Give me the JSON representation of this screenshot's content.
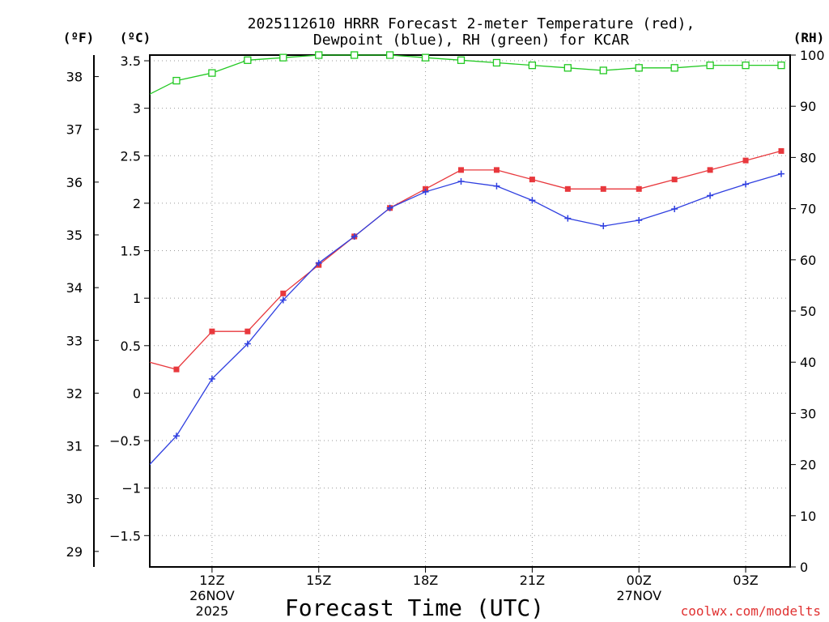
{
  "chart_data": {
    "type": "line",
    "title_line1": "2025112610 HRRR Forecast 2-meter Temperature (red),",
    "title_line2": "Dewpoint (blue), RH (green) for KCAR",
    "units": {
      "fahrenheit": "(ºF)",
      "celsius": "(ºC)",
      "rh": "(RH)"
    },
    "xlabel": "Forecast Time (UTC)",
    "credit": "coolwx.com/modelts",
    "x_range_hours": [
      10.25,
      28.25
    ],
    "celsius_range": [
      -1.83,
      3.56
    ],
    "rh_range": [
      0,
      100
    ],
    "x_ticks": [
      {
        "hour": 12,
        "label": "12Z",
        "sub1": "26NOV",
        "sub2": "2025"
      },
      {
        "hour": 15,
        "label": "15Z",
        "sub1": "",
        "sub2": ""
      },
      {
        "hour": 18,
        "label": "18Z",
        "sub1": "",
        "sub2": ""
      },
      {
        "hour": 21,
        "label": "21Z",
        "sub1": "",
        "sub2": ""
      },
      {
        "hour": 24,
        "label": "00Z",
        "sub1": "27NOV",
        "sub2": ""
      },
      {
        "hour": 27,
        "label": "03Z",
        "sub1": "",
        "sub2": ""
      }
    ],
    "celsius_ticks": [
      {
        "value": 3.5,
        "label": "3.5"
      },
      {
        "value": 3,
        "label": "3"
      },
      {
        "value": 2.5,
        "label": "2.5"
      },
      {
        "value": 2,
        "label": "2"
      },
      {
        "value": 1.5,
        "label": "1.5"
      },
      {
        "value": 1,
        "label": "1"
      },
      {
        "value": 0.5,
        "label": "0.5"
      },
      {
        "value": 0,
        "label": "0"
      },
      {
        "value": -0.5,
        "label": "−0.5"
      },
      {
        "value": -1,
        "label": "−1"
      },
      {
        "value": -1.5,
        "label": "−1.5"
      }
    ],
    "fahrenheit_ticks": [
      {
        "value": 38,
        "label": "38"
      },
      {
        "value": 37,
        "label": "37"
      },
      {
        "value": 36,
        "label": "36"
      },
      {
        "value": 35,
        "label": "35"
      },
      {
        "value": 34,
        "label": "34"
      },
      {
        "value": 33,
        "label": "33"
      },
      {
        "value": 32,
        "label": "32"
      },
      {
        "value": 31,
        "label": "31"
      },
      {
        "value": 30,
        "label": "30"
      },
      {
        "value": 29,
        "label": "29"
      }
    ],
    "rh_ticks": [
      {
        "value": 100,
        "label": "100"
      },
      {
        "value": 90,
        "label": "90"
      },
      {
        "value": 80,
        "label": "80"
      },
      {
        "value": 70,
        "label": "70"
      },
      {
        "value": 60,
        "label": "60"
      },
      {
        "value": 50,
        "label": "50"
      },
      {
        "value": 40,
        "label": "40"
      },
      {
        "value": 30,
        "label": "30"
      },
      {
        "value": 20,
        "label": "20"
      },
      {
        "value": 10,
        "label": "10"
      },
      {
        "value": 0,
        "label": "0"
      }
    ],
    "hours": [
      10,
      11,
      12,
      13,
      14,
      15,
      16,
      17,
      18,
      19,
      20,
      21,
      22,
      23,
      24,
      25,
      26,
      27,
      28
    ],
    "series": [
      {
        "name": "Temperature",
        "axis": "celsius",
        "color": "#e8383d",
        "marker": "filled-square",
        "values": [
          0.35,
          0.25,
          0.65,
          0.65,
          1.05,
          1.35,
          1.65,
          1.95,
          2.15,
          2.35,
          2.35,
          2.25,
          2.15,
          2.15,
          2.15,
          2.25,
          2.35,
          2.45,
          2.55
        ]
      },
      {
        "name": "Dewpoint",
        "axis": "celsius",
        "color": "#2f3fe0",
        "marker": "plus",
        "values": [
          -0.85,
          -0.45,
          0.15,
          0.52,
          0.98,
          1.37,
          1.65,
          1.95,
          2.12,
          2.23,
          2.18,
          2.03,
          1.84,
          1.76,
          1.82,
          1.94,
          2.08,
          2.2,
          2.31
        ]
      },
      {
        "name": "RH",
        "axis": "rh",
        "color": "#22c922",
        "marker": "open-square",
        "values": [
          91.5,
          95,
          96.5,
          99,
          99.5,
          100,
          100,
          100,
          99.5,
          99,
          98.5,
          98,
          97.5,
          97,
          97.5,
          97.5,
          98,
          98,
          98
        ]
      }
    ]
  }
}
